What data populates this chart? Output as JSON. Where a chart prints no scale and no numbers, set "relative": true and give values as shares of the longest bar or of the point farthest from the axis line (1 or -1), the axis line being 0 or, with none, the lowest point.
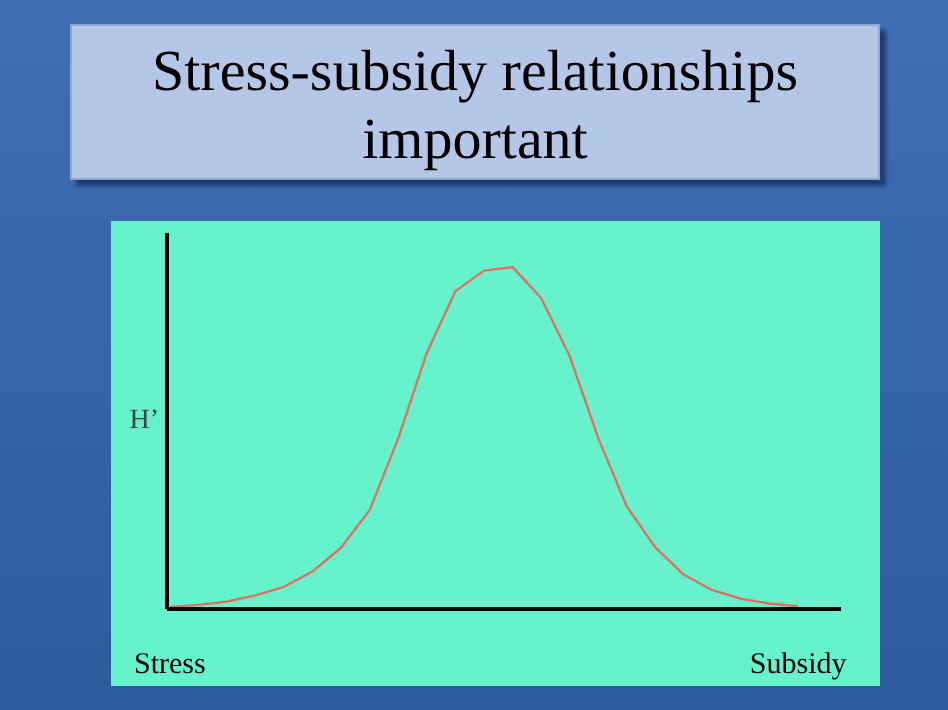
{
  "chart_data": {
    "type": "line",
    "title": "Stress-subsidy relationships important",
    "ylabel": "H’",
    "relative": true,
    "categories": [
      "Stress",
      null,
      null,
      null,
      null,
      null,
      null,
      null,
      null,
      null,
      null,
      null,
      null,
      null,
      null,
      null,
      null,
      null,
      null,
      null,
      null,
      null,
      "Subsidy"
    ],
    "series": [
      {
        "color": "#e07060",
        "values": [
          0.006,
          0.012,
          0.022,
          0.04,
          0.065,
          0.11,
          0.18,
          0.29,
          0.5,
          0.75,
          0.93,
          0.99,
          1.0,
          0.91,
          0.74,
          0.5,
          0.3,
          0.18,
          0.1,
          0.055,
          0.03,
          0.016,
          0.008
        ]
      }
    ],
    "grid": false,
    "marker": "none",
    "line_style": "solid"
  }
}
